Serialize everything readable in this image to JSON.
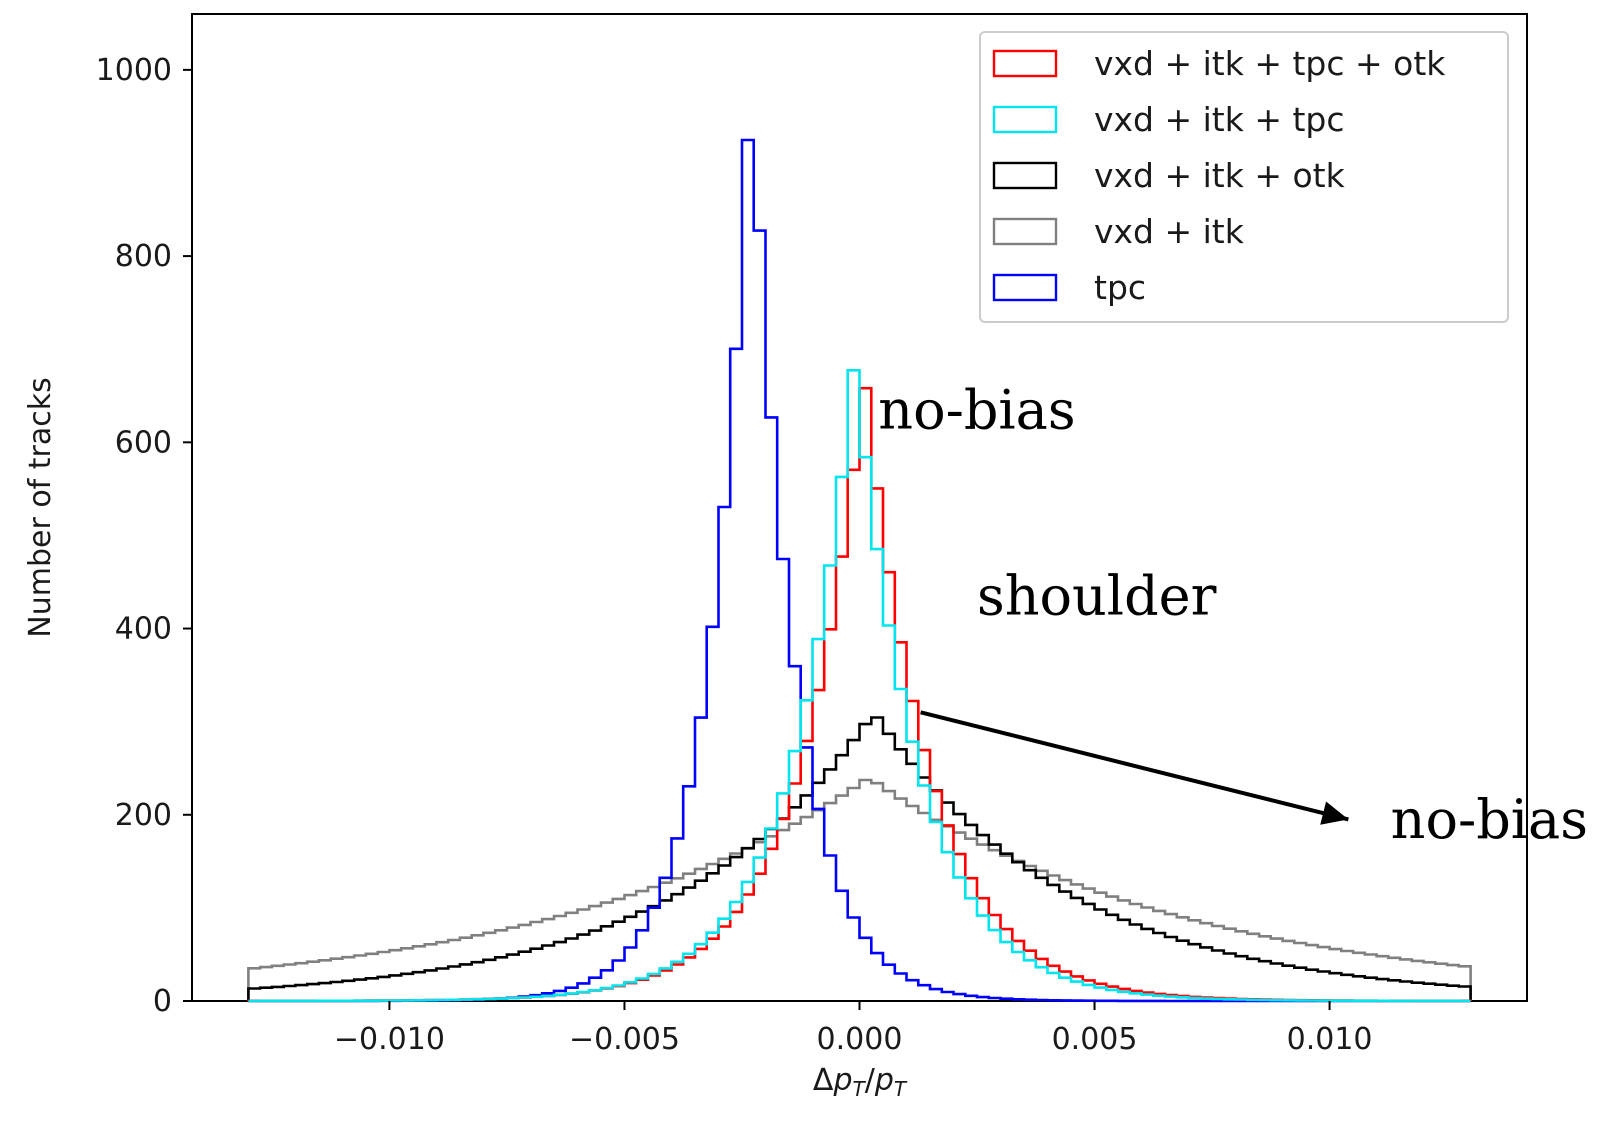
{
  "chart_data": {
    "type": "histogram",
    "xlabel": "Δp_T/p_T",
    "ylabel": "Number of tracks",
    "xlim": [
      -0.0142,
      0.0142
    ],
    "ylim": [
      0,
      1060
    ],
    "x_ticks": [
      {
        "value": -0.01,
        "label": "−0.010"
      },
      {
        "value": -0.005,
        "label": "−0.005"
      },
      {
        "value": 0.0,
        "label": "0.000"
      },
      {
        "value": 0.005,
        "label": "0.005"
      },
      {
        "value": 0.01,
        "label": "0.010"
      }
    ],
    "y_ticks": [
      {
        "value": 0,
        "label": "0"
      },
      {
        "value": 200,
        "label": "200"
      },
      {
        "value": 400,
        "label": "400"
      },
      {
        "value": 600,
        "label": "600"
      },
      {
        "value": 800,
        "label": "800"
      },
      {
        "value": 1000,
        "label": "1000"
      }
    ],
    "bins": {
      "start": -0.013,
      "end": 0.013,
      "count": 104
    },
    "legend_position": "top-right",
    "series": [
      {
        "name": "vxd + itk + tpc + otk",
        "color": "#ff0000",
        "shape": "laplace",
        "center": 0.0001,
        "scale": 0.0014,
        "peak": 670
      },
      {
        "name": "vxd + itk + tpc",
        "color": "#00e5ee",
        "shape": "laplace",
        "center": -0.0001,
        "scale": 0.00135,
        "peak": 690
      },
      {
        "name": "vxd + itk + otk",
        "color": "#000000",
        "shape": "laplace",
        "center": 0.0003,
        "scale": 0.0042,
        "peak": 310
      },
      {
        "name": "vxd + itk",
        "color": "#808080",
        "shape": "laplace",
        "center": 0.0002,
        "scale": 0.0068,
        "peak": 240
      },
      {
        "name": "tpc",
        "color": "#0000ff",
        "shape": "laplace",
        "center": -0.0023,
        "scale": 0.0009,
        "peak": 1005
      }
    ],
    "annotations": [
      {
        "text": "no-bias",
        "x": 0.0004,
        "y": 615
      },
      {
        "text": "shoulder",
        "x": 0.0025,
        "y": 415
      },
      {
        "text": "no-bias",
        "x": 0.0113,
        "y": 175
      }
    ],
    "arrow": {
      "from": [
        0.0013,
        310
      ],
      "to": [
        0.0104,
        195
      ]
    }
  }
}
